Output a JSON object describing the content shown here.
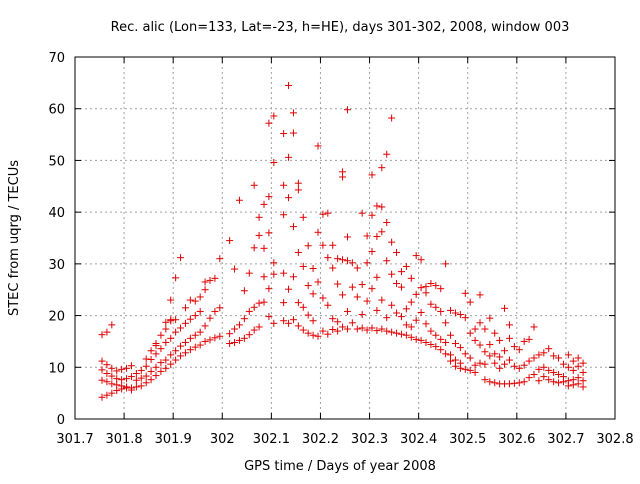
{
  "chart_data": {
    "type": "scatter",
    "title": "Rec. alic (Lon=133, Lat=-23, h=HE), days 301-302, 2008, window 003",
    "xlabel": "GPS time / Days of year 2008",
    "ylabel": "STEC from uqrg / TECUs",
    "xlim": [
      301.7,
      302.8
    ],
    "ylim": [
      0,
      70
    ],
    "xticks": [
      "301.7",
      "301.8",
      "301.9",
      "302",
      "302.1",
      "302.2",
      "302.3",
      "302.4",
      "302.5",
      "302.6",
      "302.7",
      "302.8"
    ],
    "yticks": [
      "0",
      "10",
      "20",
      "30",
      "40",
      "50",
      "60",
      "70"
    ],
    "grid": true,
    "marker": "+",
    "color": "#e00000",
    "points": [
      [
        301.755,
        16.3
      ],
      [
        301.765,
        16.8
      ],
      [
        301.775,
        18.2
      ],
      [
        301.755,
        11.2
      ],
      [
        301.765,
        10.5
      ],
      [
        301.775,
        9.8
      ],
      [
        301.785,
        9.3
      ],
      [
        301.795,
        9.6
      ],
      [
        301.805,
        9.8
      ],
      [
        301.815,
        10.3
      ],
      [
        301.755,
        9.5
      ],
      [
        301.765,
        8.8
      ],
      [
        301.775,
        8.3
      ],
      [
        301.785,
        7.8
      ],
      [
        301.795,
        7.6
      ],
      [
        301.805,
        7.8
      ],
      [
        301.815,
        8.2
      ],
      [
        301.755,
        7.5
      ],
      [
        301.765,
        7.2
      ],
      [
        301.775,
        6.8
      ],
      [
        301.785,
        6.6
      ],
      [
        301.795,
        6.4
      ],
      [
        301.805,
        6.2
      ],
      [
        301.815,
        6.0
      ],
      [
        301.755,
        4.2
      ],
      [
        301.765,
        4.6
      ],
      [
        301.775,
        5.0
      ],
      [
        301.785,
        5.5
      ],
      [
        301.795,
        5.8
      ],
      [
        301.805,
        6.0
      ],
      [
        301.815,
        5.6
      ],
      [
        301.825,
        6.2
      ],
      [
        301.835,
        6.4
      ],
      [
        301.845,
        7.0
      ],
      [
        301.855,
        7.6
      ],
      [
        301.865,
        8.4
      ],
      [
        301.875,
        9.2
      ],
      [
        301.885,
        9.8
      ],
      [
        301.825,
        7.5
      ],
      [
        301.835,
        7.9
      ],
      [
        301.845,
        8.3
      ],
      [
        301.855,
        9.2
      ],
      [
        301.865,
        10.0
      ],
      [
        301.875,
        10.9
      ],
      [
        301.885,
        11.4
      ],
      [
        301.825,
        8.8
      ],
      [
        301.835,
        9.4
      ],
      [
        301.845,
        10.2
      ],
      [
        301.855,
        11.5
      ],
      [
        301.865,
        12.6
      ],
      [
        301.875,
        13.6
      ],
      [
        301.885,
        14.8
      ],
      [
        301.845,
        11.6
      ],
      [
        301.855,
        13.2
      ],
      [
        301.865,
        14.6
      ],
      [
        301.875,
        16.2
      ],
      [
        301.885,
        17.4
      ],
      [
        301.895,
        19.2
      ],
      [
        301.865,
        14.2
      ],
      [
        301.885,
        18.7
      ],
      [
        301.895,
        23.0
      ],
      [
        301.905,
        27.3
      ],
      [
        301.915,
        31.2
      ],
      [
        301.895,
        10.6
      ],
      [
        301.905,
        11.4
      ],
      [
        301.915,
        12.2
      ],
      [
        301.925,
        12.8
      ],
      [
        301.935,
        13.4
      ],
      [
        301.945,
        13.9
      ],
      [
        301.955,
        14.3
      ],
      [
        301.895,
        12.4
      ],
      [
        301.905,
        13.2
      ],
      [
        301.915,
        14.1
      ],
      [
        301.925,
        14.8
      ],
      [
        301.935,
        15.6
      ],
      [
        301.945,
        16.2
      ],
      [
        301.955,
        16.8
      ],
      [
        301.895,
        15.6
      ],
      [
        301.905,
        16.8
      ],
      [
        301.915,
        17.6
      ],
      [
        301.925,
        18.5
      ],
      [
        301.935,
        19.3
      ],
      [
        301.945,
        20.0
      ],
      [
        301.955,
        20.8
      ],
      [
        301.895,
        19.0
      ],
      [
        301.905,
        19.2
      ],
      [
        301.925,
        21.5
      ],
      [
        301.935,
        23.0
      ],
      [
        301.945,
        22.8
      ],
      [
        301.955,
        23.6
      ],
      [
        301.965,
        25.0
      ],
      [
        301.965,
        15.0
      ],
      [
        301.975,
        15.3
      ],
      [
        301.985,
        15.7
      ],
      [
        301.995,
        16.0
      ],
      [
        301.965,
        18.0
      ],
      [
        301.975,
        19.5
      ],
      [
        301.985,
        20.8
      ],
      [
        301.995,
        21.5
      ],
      [
        301.965,
        26.5
      ],
      [
        301.975,
        26.8
      ],
      [
        301.985,
        27.2
      ],
      [
        301.995,
        31.0
      ],
      [
        302.015,
        14.6
      ],
      [
        302.025,
        14.8
      ],
      [
        302.035,
        15.2
      ],
      [
        302.045,
        15.6
      ],
      [
        302.055,
        16.3
      ],
      [
        302.065,
        17.2
      ],
      [
        302.075,
        17.8
      ],
      [
        302.015,
        16.5
      ],
      [
        302.025,
        17.4
      ],
      [
        302.035,
        18.2
      ],
      [
        302.045,
        19.4
      ],
      [
        302.055,
        20.8
      ],
      [
        302.065,
        21.6
      ],
      [
        302.075,
        22.4
      ],
      [
        302.015,
        34.5
      ],
      [
        302.025,
        29.0
      ],
      [
        302.035,
        42.3
      ],
      [
        302.045,
        24.8
      ],
      [
        302.055,
        28.2
      ],
      [
        302.065,
        33.1
      ],
      [
        302.075,
        35.5
      ],
      [
        302.065,
        45.2
      ],
      [
        302.075,
        39.0
      ],
      [
        302.085,
        41.5
      ],
      [
        302.085,
        33.0
      ],
      [
        302.085,
        27.5
      ],
      [
        302.085,
        22.6
      ],
      [
        302.095,
        57.2
      ],
      [
        302.095,
        43.0
      ],
      [
        302.095,
        36.0
      ],
      [
        302.095,
        25.2
      ],
      [
        302.095,
        19.8
      ],
      [
        302.105,
        58.6
      ],
      [
        302.105,
        49.6
      ],
      [
        302.105,
        30.2
      ],
      [
        302.105,
        28.0
      ],
      [
        302.105,
        18.5
      ],
      [
        302.125,
        55.2
      ],
      [
        302.125,
        45.2
      ],
      [
        302.125,
        39.5
      ],
      [
        302.125,
        28.2
      ],
      [
        302.125,
        22.5
      ],
      [
        302.125,
        19.0
      ],
      [
        302.135,
        64.5
      ],
      [
        302.135,
        50.6
      ],
      [
        302.135,
        42.8
      ],
      [
        302.135,
        25.1
      ],
      [
        302.135,
        18.5
      ],
      [
        302.145,
        59.2
      ],
      [
        302.145,
        55.3
      ],
      [
        302.145,
        37.2
      ],
      [
        302.145,
        27.5
      ],
      [
        302.145,
        19.2
      ],
      [
        302.155,
        45.6
      ],
      [
        302.155,
        44.3
      ],
      [
        302.155,
        32.2
      ],
      [
        302.155,
        22.5
      ],
      [
        302.155,
        18.0
      ],
      [
        302.165,
        39.0
      ],
      [
        302.165,
        29.5
      ],
      [
        302.165,
        21.6
      ],
      [
        302.165,
        17.2
      ],
      [
        302.175,
        33.5
      ],
      [
        302.175,
        25.8
      ],
      [
        302.175,
        20.1
      ],
      [
        302.175,
        16.6
      ],
      [
        302.185,
        29.1
      ],
      [
        302.185,
        24.2
      ],
      [
        302.185,
        19.0
      ],
      [
        302.185,
        16.2
      ],
      [
        302.195,
        52.8
      ],
      [
        302.195,
        36.1
      ],
      [
        302.195,
        26.5
      ],
      [
        302.195,
        16.0
      ],
      [
        302.205,
        39.6
      ],
      [
        302.205,
        33.6
      ],
      [
        302.205,
        23.4
      ],
      [
        302.205,
        17.0
      ],
      [
        302.215,
        39.8
      ],
      [
        302.215,
        31.2
      ],
      [
        302.215,
        22.0
      ],
      [
        302.215,
        16.4
      ],
      [
        302.225,
        33.6
      ],
      [
        302.225,
        29.2
      ],
      [
        302.225,
        19.4
      ],
      [
        302.225,
        17.3
      ],
      [
        302.235,
        31.0
      ],
      [
        302.235,
        26.1
      ],
      [
        302.235,
        18.8
      ],
      [
        302.235,
        17.0
      ],
      [
        302.245,
        47.8
      ],
      [
        302.245,
        46.8
      ],
      [
        302.245,
        30.8
      ],
      [
        302.245,
        24.0
      ],
      [
        302.245,
        17.8
      ],
      [
        302.255,
        59.8
      ],
      [
        302.255,
        35.2
      ],
      [
        302.255,
        30.6
      ],
      [
        302.255,
        20.8
      ],
      [
        302.255,
        17.4
      ],
      [
        302.265,
        30.2
      ],
      [
        302.265,
        25.5
      ],
      [
        302.265,
        18.6
      ],
      [
        302.275,
        29.2
      ],
      [
        302.275,
        23.6
      ],
      [
        302.275,
        17.4
      ],
      [
        302.285,
        39.8
      ],
      [
        302.285,
        26.0
      ],
      [
        302.285,
        20.2
      ],
      [
        302.285,
        17.6
      ],
      [
        302.295,
        35.4
      ],
      [
        302.295,
        30.2
      ],
      [
        302.295,
        22.8
      ],
      [
        302.295,
        17.2
      ],
      [
        302.305,
        47.2
      ],
      [
        302.305,
        39.4
      ],
      [
        302.305,
        32.4
      ],
      [
        302.305,
        25.2
      ],
      [
        302.305,
        17.6
      ],
      [
        302.315,
        41.2
      ],
      [
        302.315,
        35.3
      ],
      [
        302.315,
        27.4
      ],
      [
        302.315,
        21.0
      ],
      [
        302.315,
        17.1
      ],
      [
        302.325,
        48.6
      ],
      [
        302.325,
        41.0
      ],
      [
        302.325,
        36.2
      ],
      [
        302.325,
        23.0
      ],
      [
        302.325,
        17.4
      ],
      [
        302.335,
        51.2
      ],
      [
        302.335,
        38.0
      ],
      [
        302.335,
        30.6
      ],
      [
        302.335,
        19.6
      ],
      [
        302.335,
        17.0
      ],
      [
        302.345,
        58.2
      ],
      [
        302.345,
        34.2
      ],
      [
        302.345,
        28.0
      ],
      [
        302.345,
        22.0
      ],
      [
        302.345,
        16.8
      ],
      [
        302.355,
        32.2
      ],
      [
        302.355,
        26.2
      ],
      [
        302.355,
        20.5
      ],
      [
        302.355,
        16.6
      ],
      [
        302.365,
        28.5
      ],
      [
        302.365,
        25.5
      ],
      [
        302.365,
        19.8
      ],
      [
        302.365,
        16.4
      ],
      [
        302.375,
        29.5
      ],
      [
        302.375,
        21.3
      ],
      [
        302.375,
        18.2
      ],
      [
        302.375,
        16.2
      ],
      [
        302.385,
        27.2
      ],
      [
        302.385,
        22.6
      ],
      [
        302.385,
        17.8
      ],
      [
        302.385,
        15.8
      ],
      [
        302.395,
        31.6
      ],
      [
        302.395,
        24.1
      ],
      [
        302.395,
        19.1
      ],
      [
        302.395,
        15.4
      ],
      [
        302.405,
        30.8
      ],
      [
        302.405,
        25.4
      ],
      [
        302.405,
        20.6
      ],
      [
        302.405,
        15.2
      ],
      [
        302.415,
        25.6
      ],
      [
        302.415,
        24.4
      ],
      [
        302.415,
        18.4
      ],
      [
        302.415,
        14.8
      ],
      [
        302.425,
        26.2
      ],
      [
        302.425,
        22.2
      ],
      [
        302.425,
        17.0
      ],
      [
        302.425,
        14.4
      ],
      [
        302.435,
        25.8
      ],
      [
        302.435,
        21.6
      ],
      [
        302.435,
        16.2
      ],
      [
        302.435,
        14.0
      ],
      [
        302.445,
        25.2
      ],
      [
        302.445,
        20.8
      ],
      [
        302.445,
        15.4
      ],
      [
        302.445,
        13.4
      ],
      [
        302.455,
        30.0
      ],
      [
        302.455,
        18.6
      ],
      [
        302.455,
        14.8
      ],
      [
        302.455,
        12.6
      ],
      [
        302.465,
        21.0
      ],
      [
        302.465,
        16.2
      ],
      [
        302.465,
        12.4
      ],
      [
        302.465,
        11.2
      ],
      [
        302.475,
        20.5
      ],
      [
        302.475,
        14.6
      ],
      [
        302.475,
        11.4
      ],
      [
        302.475,
        10.2
      ],
      [
        302.485,
        20.2
      ],
      [
        302.485,
        13.8
      ],
      [
        302.485,
        10.8
      ],
      [
        302.485,
        9.8
      ],
      [
        302.495,
        24.3
      ],
      [
        302.495,
        19.6
      ],
      [
        302.495,
        12.6
      ],
      [
        302.495,
        9.6
      ],
      [
        302.505,
        22.6
      ],
      [
        302.505,
        16.6
      ],
      [
        302.505,
        11.8
      ],
      [
        302.505,
        9.4
      ],
      [
        302.515,
        17.4
      ],
      [
        302.515,
        15.2
      ],
      [
        302.515,
        10.4
      ],
      [
        302.515,
        9.0
      ],
      [
        302.525,
        24.0
      ],
      [
        302.525,
        18.6
      ],
      [
        302.525,
        14.3
      ],
      [
        302.525,
        10.8
      ],
      [
        302.535,
        17.4
      ],
      [
        302.535,
        13.0
      ],
      [
        302.535,
        10.6
      ],
      [
        302.535,
        7.6
      ],
      [
        302.545,
        19.5
      ],
      [
        302.545,
        14.4
      ],
      [
        302.545,
        12.2
      ],
      [
        302.545,
        7.2
      ],
      [
        302.555,
        16.6
      ],
      [
        302.555,
        12.6
      ],
      [
        302.555,
        10.8
      ],
      [
        302.555,
        7.0
      ],
      [
        302.565,
        15.2
      ],
      [
        302.565,
        12.0
      ],
      [
        302.565,
        9.8
      ],
      [
        302.565,
        6.8
      ],
      [
        302.575,
        21.4
      ],
      [
        302.575,
        13.2
      ],
      [
        302.575,
        10.6
      ],
      [
        302.575,
        6.8
      ],
      [
        302.585,
        18.2
      ],
      [
        302.585,
        15.6
      ],
      [
        302.585,
        11.4
      ],
      [
        302.585,
        6.8
      ],
      [
        302.595,
        14.0
      ],
      [
        302.595,
        10.2
      ],
      [
        302.595,
        6.9
      ],
      [
        302.605,
        13.4
      ],
      [
        302.605,
        9.8
      ],
      [
        302.605,
        7.0
      ],
      [
        302.615,
        15.0
      ],
      [
        302.615,
        10.4
      ],
      [
        302.615,
        7.2
      ],
      [
        302.625,
        15.4
      ],
      [
        302.625,
        11.2
      ],
      [
        302.625,
        8.0
      ],
      [
        302.635,
        17.8
      ],
      [
        302.635,
        11.8
      ],
      [
        302.635,
        8.6
      ],
      [
        302.645,
        12.4
      ],
      [
        302.645,
        9.6
      ],
      [
        302.645,
        7.4
      ],
      [
        302.655,
        12.8
      ],
      [
        302.655,
        10.0
      ],
      [
        302.655,
        8.2
      ],
      [
        302.665,
        13.6
      ],
      [
        302.665,
        9.4
      ],
      [
        302.665,
        7.6
      ],
      [
        302.675,
        12.2
      ],
      [
        302.675,
        9.0
      ],
      [
        302.675,
        7.2
      ],
      [
        302.685,
        11.8
      ],
      [
        302.685,
        8.6
      ],
      [
        302.685,
        7.0
      ],
      [
        302.695,
        10.6
      ],
      [
        302.695,
        8.2
      ],
      [
        302.695,
        7.2
      ],
      [
        302.705,
        12.4
      ],
      [
        302.705,
        10.0
      ],
      [
        302.705,
        7.4
      ],
      [
        302.705,
        6.4
      ],
      [
        302.715,
        11.2
      ],
      [
        302.715,
        9.4
      ],
      [
        302.715,
        7.6
      ],
      [
        302.715,
        6.6
      ],
      [
        302.725,
        11.8
      ],
      [
        302.725,
        10.2
      ],
      [
        302.725,
        8.0
      ],
      [
        302.725,
        6.8
      ],
      [
        302.735,
        10.8
      ],
      [
        302.735,
        9.0
      ],
      [
        302.735,
        7.4
      ],
      [
        302.735,
        6.2
      ]
    ]
  }
}
